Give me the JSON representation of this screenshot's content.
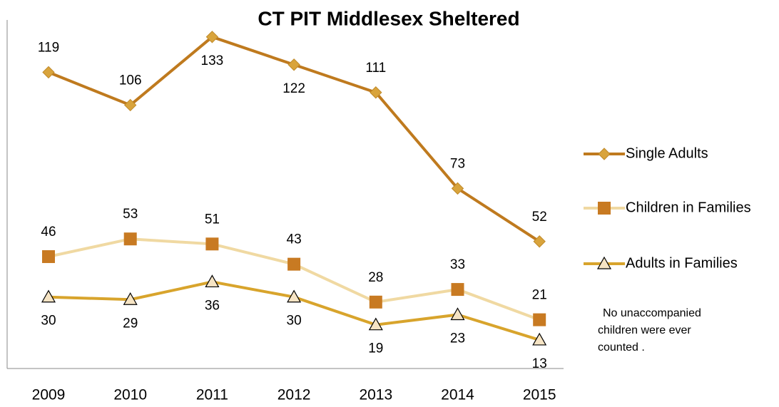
{
  "chart_data": {
    "type": "line",
    "title": "CT PIT Middlesex Sheltered",
    "categories": [
      "2009",
      "2010",
      "2011",
      "2012",
      "2013",
      "2014",
      "2015"
    ],
    "series": [
      {
        "name": "Single Adults",
        "color": "#bf7a1e",
        "marker_color": "#d9a43c",
        "marker": "diamond",
        "values": [
          119,
          106,
          133,
          122,
          111,
          73,
          52
        ]
      },
      {
        "name": "Children in Families",
        "color": "#f0d9a2",
        "marker_color": "#c87a22",
        "marker": "square",
        "values": [
          46,
          53,
          51,
          43,
          28,
          33,
          21
        ]
      },
      {
        "name": "Adults in Families",
        "color": "#d8a42c",
        "marker_color": "#f6e4c4",
        "marker": "triangle",
        "values": [
          30,
          29,
          36,
          30,
          19,
          23,
          13
        ]
      }
    ],
    "ylim": [
      0,
      140
    ],
    "annotation": [
      "No unaccompanied",
      "children were ever",
      "counted ."
    ]
  }
}
